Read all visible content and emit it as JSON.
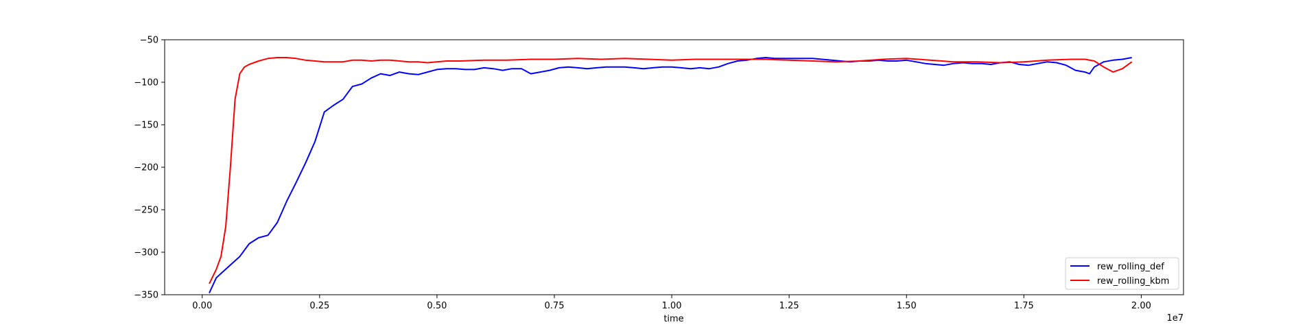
{
  "chart_data": {
    "type": "line",
    "title": "",
    "xlabel": "time",
    "ylabel": "",
    "x_offset_label": "1e7",
    "xlim": [
      -0.08,
      2.09
    ],
    "ylim": [
      -350,
      -50
    ],
    "x_ticks": [
      0.0,
      0.25,
      0.5,
      0.75,
      1.0,
      1.25,
      1.5,
      1.75,
      2.0
    ],
    "x_tick_labels": [
      "0.00",
      "0.25",
      "0.50",
      "0.75",
      "1.00",
      "1.25",
      "1.50",
      "1.75",
      "2.00"
    ],
    "y_ticks": [
      -50,
      -100,
      -150,
      -200,
      -250,
      -300,
      -350
    ],
    "y_tick_labels": [
      "−50",
      "−100",
      "−150",
      "−200",
      "−250",
      "−300",
      "−350"
    ],
    "grid": false,
    "legend_position": "lower-right",
    "series": [
      {
        "name": "rew_rolling_def",
        "color": "#0000ff",
        "x": [
          0.015,
          0.03,
          0.05,
          0.08,
          0.1,
          0.12,
          0.14,
          0.16,
          0.18,
          0.2,
          0.22,
          0.24,
          0.26,
          0.28,
          0.3,
          0.32,
          0.34,
          0.36,
          0.38,
          0.4,
          0.42,
          0.44,
          0.46,
          0.48,
          0.5,
          0.52,
          0.54,
          0.56,
          0.58,
          0.6,
          0.62,
          0.64,
          0.66,
          0.68,
          0.7,
          0.72,
          0.74,
          0.76,
          0.78,
          0.8,
          0.82,
          0.84,
          0.86,
          0.88,
          0.9,
          0.92,
          0.94,
          0.96,
          0.98,
          1.0,
          1.02,
          1.04,
          1.06,
          1.08,
          1.1,
          1.12,
          1.14,
          1.16,
          1.18,
          1.2,
          1.22,
          1.24,
          1.26,
          1.28,
          1.3,
          1.32,
          1.34,
          1.36,
          1.38,
          1.4,
          1.42,
          1.44,
          1.46,
          1.48,
          1.5,
          1.52,
          1.54,
          1.56,
          1.58,
          1.6,
          1.62,
          1.64,
          1.66,
          1.68,
          1.7,
          1.72,
          1.74,
          1.76,
          1.78,
          1.8,
          1.82,
          1.84,
          1.86,
          1.88,
          1.89,
          1.9,
          1.92,
          1.94,
          1.96,
          1.98
        ],
        "values": [
          -348,
          -330,
          -320,
          -305,
          -290,
          -283,
          -280,
          -265,
          -240,
          -218,
          -195,
          -170,
          -135,
          -127,
          -120,
          -105,
          -102,
          -95,
          -90,
          -92,
          -88,
          -90,
          -91,
          -88,
          -85,
          -84,
          -84,
          -85,
          -85,
          -83,
          -84,
          -86,
          -84,
          -84,
          -90,
          -88,
          -86,
          -83,
          -82,
          -83,
          -84,
          -83,
          -82,
          -82,
          -82,
          -83,
          -84,
          -83,
          -82,
          -82,
          -83,
          -84,
          -83,
          -84,
          -82,
          -78,
          -75,
          -74,
          -72,
          -71,
          -72,
          -72,
          -72,
          -72,
          -72,
          -73,
          -74,
          -75,
          -76,
          -75,
          -75,
          -74,
          -75,
          -75,
          -74,
          -76,
          -78,
          -79,
          -80,
          -78,
          -77,
          -78,
          -78,
          -79,
          -77,
          -76,
          -79,
          -80,
          -78,
          -76,
          -77,
          -80,
          -86,
          -88,
          -90,
          -82,
          -76,
          -74,
          -73,
          -71
        ]
      },
      {
        "name": "rew_rolling_kbm",
        "color": "#ff0000",
        "x": [
          0.015,
          0.03,
          0.04,
          0.05,
          0.06,
          0.07,
          0.08,
          0.09,
          0.1,
          0.12,
          0.14,
          0.16,
          0.18,
          0.2,
          0.22,
          0.24,
          0.26,
          0.28,
          0.3,
          0.32,
          0.34,
          0.36,
          0.38,
          0.4,
          0.42,
          0.44,
          0.46,
          0.48,
          0.5,
          0.52,
          0.55,
          0.6,
          0.65,
          0.7,
          0.75,
          0.8,
          0.85,
          0.9,
          0.95,
          1.0,
          1.05,
          1.1,
          1.15,
          1.2,
          1.25,
          1.3,
          1.35,
          1.4,
          1.45,
          1.5,
          1.55,
          1.6,
          1.65,
          1.7,
          1.75,
          1.8,
          1.85,
          1.88,
          1.9,
          1.92,
          1.94,
          1.96,
          1.98
        ],
        "values": [
          -337,
          -320,
          -305,
          -270,
          -200,
          -120,
          -90,
          -82,
          -79,
          -75,
          -72,
          -71,
          -71,
          -72,
          -74,
          -75,
          -76,
          -76,
          -76,
          -74,
          -74,
          -75,
          -74,
          -74,
          -75,
          -76,
          -76,
          -77,
          -76,
          -75,
          -75,
          -74,
          -74,
          -73,
          -73,
          -72,
          -73,
          -72,
          -73,
          -74,
          -73,
          -73,
          -73,
          -73,
          -74,
          -75,
          -76,
          -75,
          -73,
          -72,
          -74,
          -76,
          -76,
          -77,
          -76,
          -74,
          -73,
          -73,
          -75,
          -82,
          -88,
          -84,
          -76
        ]
      }
    ]
  }
}
